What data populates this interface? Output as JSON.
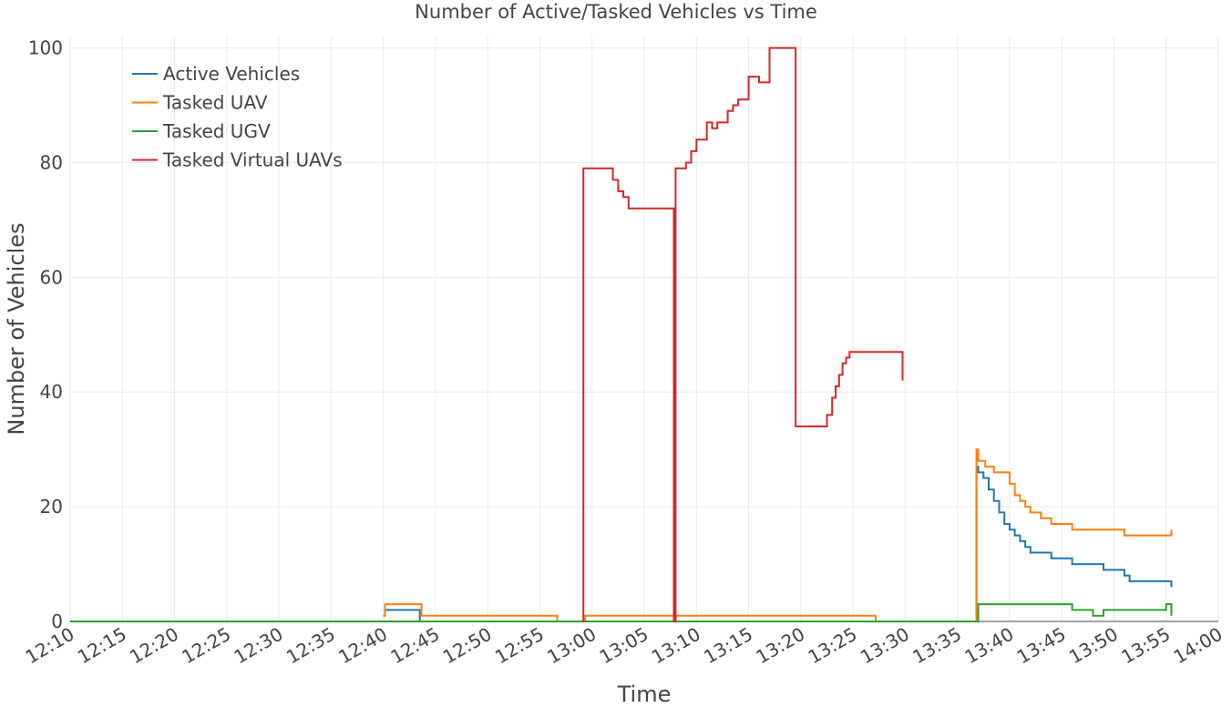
{
  "chart_data": {
    "type": "line",
    "title": "Number of Active/Tasked Vehicles vs Time",
    "xlabel": "Time",
    "ylabel": "Number of Vehicles",
    "xlim": [
      "12:10",
      "14:00"
    ],
    "ylim": [
      0,
      102
    ],
    "x_ticks": [
      "12:10",
      "12:15",
      "12:20",
      "12:25",
      "12:30",
      "12:35",
      "12:40",
      "12:45",
      "12:50",
      "12:55",
      "13:00",
      "13:05",
      "13:10",
      "13:15",
      "13:20",
      "13:25",
      "13:30",
      "13:35",
      "13:40",
      "13:45",
      "13:50",
      "13:55",
      "14:00"
    ],
    "y_ticks": [
      0,
      20,
      40,
      60,
      80,
      100
    ],
    "grid": true,
    "legend_position": "top-left",
    "series": [
      {
        "name": "Active Vehicles",
        "color": "#1f77b4",
        "x": [
          "12:40:00",
          "12:40:10",
          "12:43:20",
          "12:43:30",
          "13:36:40",
          "13:36:50",
          "13:37:00",
          "13:37:30",
          "13:38:00",
          "13:38:30",
          "13:39:00",
          "13:39:30",
          "13:40:00",
          "13:40:30",
          "13:41:00",
          "13:41:30",
          "13:42:00",
          "13:43:00",
          "13:44:00",
          "13:45:00",
          "13:46:00",
          "13:49:00",
          "13:51:00",
          "13:51:30",
          "13:52:00",
          "13:55:30"
        ],
        "y": [
          1,
          2,
          2,
          0,
          0,
          27,
          26,
          25,
          23,
          21,
          19,
          17,
          16,
          15,
          14,
          13,
          12,
          12,
          11,
          11,
          10,
          9,
          8,
          7,
          7,
          6
        ]
      },
      {
        "name": "Tasked UAV",
        "color": "#ff7f0e",
        "x": [
          "12:40:00",
          "12:40:10",
          "12:43:20",
          "12:43:40",
          "12:56:30",
          "12:56:40",
          "12:59:10",
          "12:59:20",
          "13:27:00",
          "13:27:10",
          "13:36:40",
          "13:36:50",
          "13:37:00",
          "13:37:40",
          "13:38:30",
          "13:40:00",
          "13:40:30",
          "13:41:00",
          "13:41:30",
          "13:42:00",
          "13:43:00",
          "13:44:00",
          "13:45:00",
          "13:46:00",
          "13:50:00",
          "13:51:00",
          "13:55:30"
        ],
        "y": [
          1,
          3,
          3,
          1,
          1,
          0,
          0,
          1,
          1,
          0,
          0,
          30,
          28,
          27,
          26,
          24,
          22,
          21,
          20,
          19,
          18,
          17,
          17,
          16,
          16,
          15,
          16
        ]
      },
      {
        "name": "Tasked UGV",
        "color": "#2ca02c",
        "x": [
          "12:10:00",
          "13:36:50",
          "13:37:00",
          "13:45:00",
          "13:46:00",
          "13:47:00",
          "13:48:00",
          "13:49:00",
          "13:50:00",
          "13:52:00",
          "13:54:00",
          "13:55:00",
          "13:55:30"
        ],
        "y": [
          0,
          0,
          3,
          3,
          2,
          2,
          1,
          2,
          2,
          2,
          2,
          3,
          1
        ]
      },
      {
        "name": "Tasked Virtual UAVs",
        "color": "#d62728",
        "x": [
          "12:59:00",
          "12:59:10",
          "13:01:30",
          "13:02:00",
          "13:02:30",
          "13:03:00",
          "13:03:30",
          "13:07:40",
          "13:07:50",
          "13:08:00",
          "13:09:00",
          "13:09:30",
          "13:10:00",
          "13:10:30",
          "13:11:00",
          "13:11:30",
          "13:12:00",
          "13:13:00",
          "13:13:30",
          "13:14:00",
          "13:15:00",
          "13:16:00",
          "13:17:00",
          "13:19:20",
          "13:19:30",
          "13:22:20",
          "13:22:30",
          "13:23:00",
          "13:23:20",
          "13:23:40",
          "13:24:00",
          "13:24:20",
          "13:24:40",
          "13:25:00",
          "13:29:40",
          "13:29:45"
        ],
        "y": [
          0,
          79,
          79,
          77,
          75,
          74,
          72,
          72,
          0,
          79,
          80,
          82,
          84,
          84,
          87,
          86,
          87,
          89,
          90,
          91,
          95,
          94,
          100,
          100,
          34,
          34,
          36,
          39,
          41,
          43,
          45,
          46,
          47,
          47,
          47,
          42
        ]
      }
    ]
  }
}
